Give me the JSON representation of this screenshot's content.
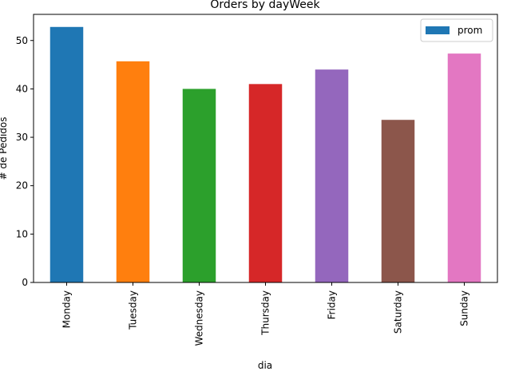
{
  "chart_data": {
    "type": "bar",
    "title": "Orders by dayWeek",
    "xlabel": "dia",
    "ylabel": "# de Pedidos",
    "categories": [
      "Monday",
      "Tuesday",
      "Wednesday",
      "Thursday",
      "Friday",
      "Saturday",
      "Sunday"
    ],
    "series": [
      {
        "name": "prom",
        "values": [
          52.8,
          45.7,
          40.0,
          41.0,
          44.0,
          33.6,
          47.3
        ]
      }
    ],
    "bar_colors": [
      "#1f77b4",
      "#ff7f0e",
      "#2ca02c",
      "#d62728",
      "#9467bd",
      "#8c564b",
      "#e377c2"
    ],
    "legend_color": "#1f77b4",
    "ylim": [
      0,
      55.4
    ],
    "yticks": [
      0,
      10,
      20,
      30,
      40,
      50
    ],
    "legend_position": "top-right",
    "grid": false
  }
}
